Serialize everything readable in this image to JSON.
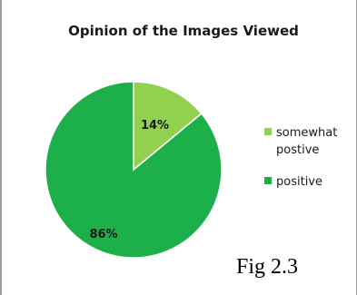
{
  "chart_data": {
    "type": "pie",
    "title": "Opinion of the Images Viewed",
    "categories": [
      "somewhat postive",
      "positive"
    ],
    "values": [
      14,
      86
    ],
    "value_labels": [
      "14%",
      "86%"
    ],
    "colors": [
      "#92d050",
      "#1db04a"
    ],
    "legend": {
      "placement": "right",
      "entries": [
        "somewhat postive",
        "positive"
      ]
    }
  },
  "caption": "Fig 2.3"
}
